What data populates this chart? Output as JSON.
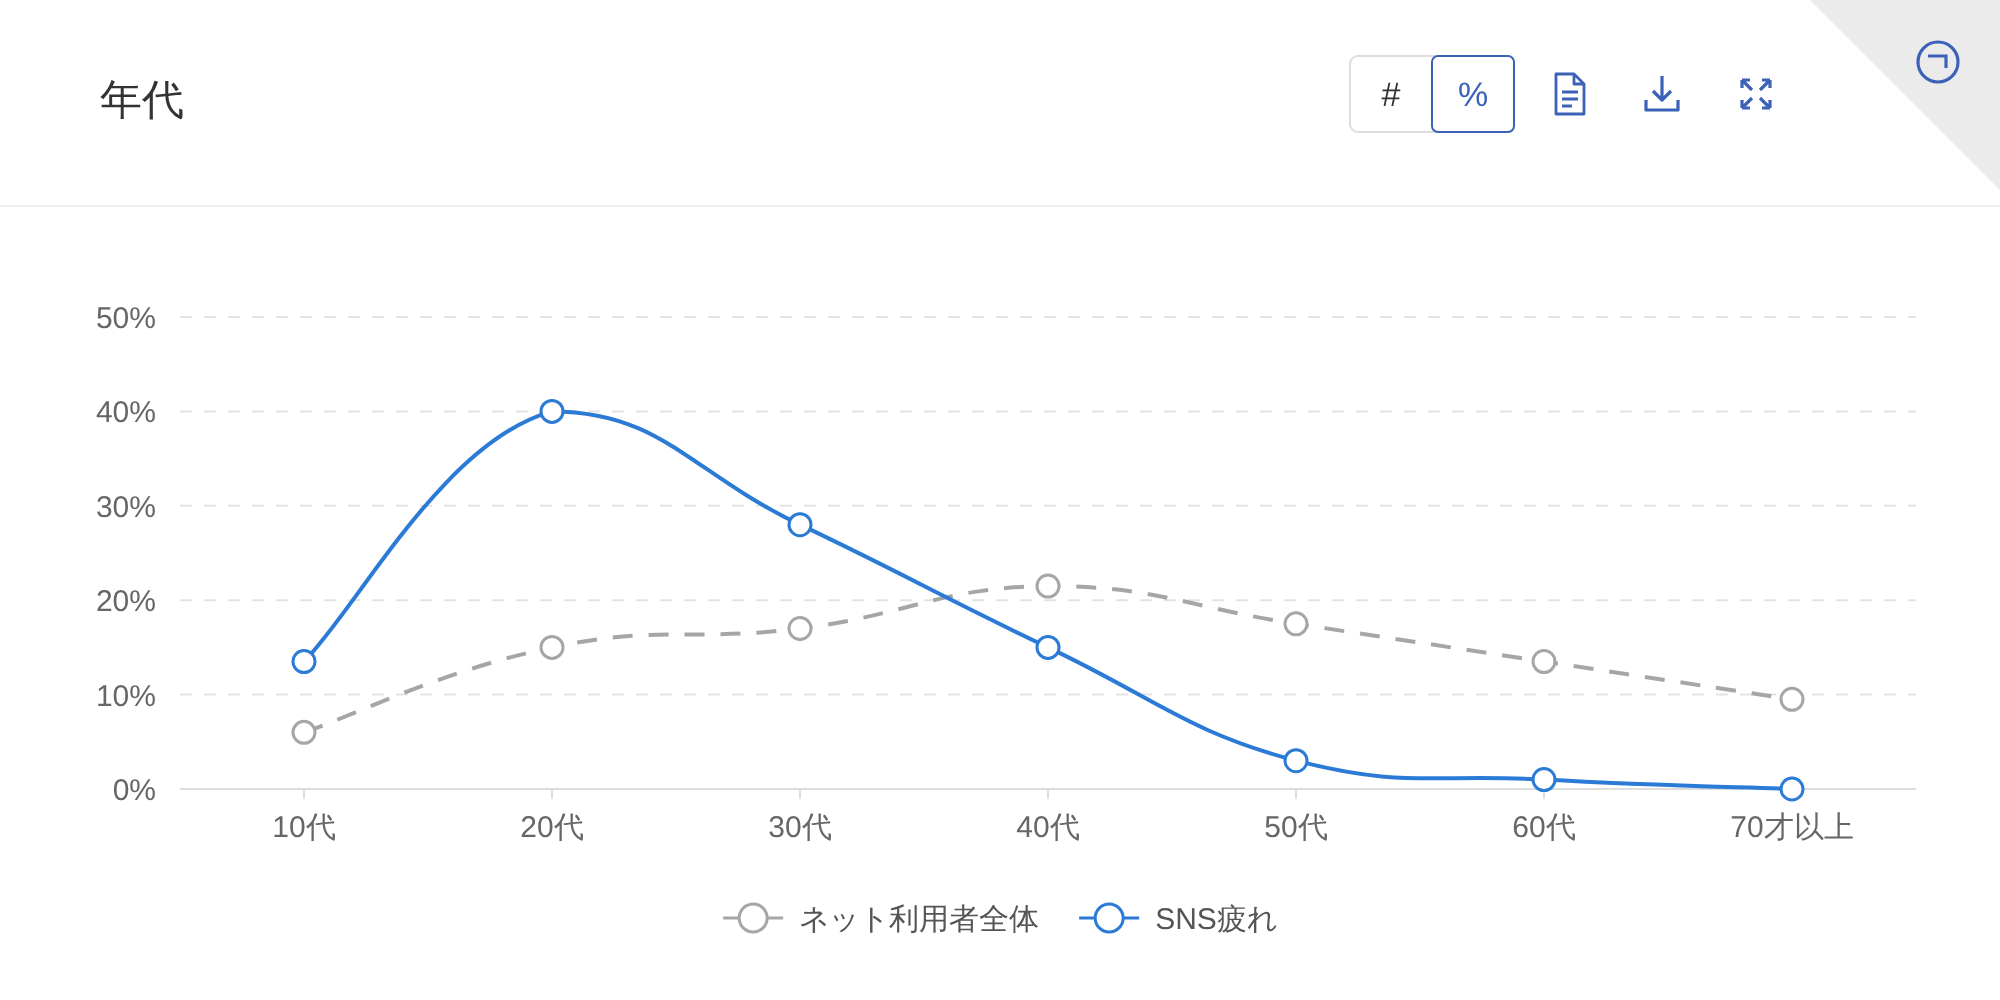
{
  "chart_data": {
    "type": "line",
    "title": "年代",
    "annotations": [
      "#",
      "%"
    ],
    "categories": [
      "10代",
      "20代",
      "30代",
      "40代",
      "50代",
      "60代",
      "70才以上"
    ],
    "series": [
      {
        "name": "ネット利用者全体",
        "color": "#a6a6a6",
        "line_style": "dashed",
        "values": [
          6,
          15,
          17,
          21.5,
          17.5,
          13.5,
          9.5
        ]
      },
      {
        "name": "SNS疲れ",
        "color": "#2b7bd6",
        "line_style": "solid",
        "values": [
          13.5,
          40,
          28,
          15,
          3,
          1,
          0
        ]
      }
    ],
    "ylim": [
      0,
      50
    ],
    "yticks": [
      {
        "value": 0,
        "label": "0%"
      },
      {
        "value": 10,
        "label": "10%"
      },
      {
        "value": 20,
        "label": "20%"
      },
      {
        "value": 30,
        "label": "30%"
      },
      {
        "value": 40,
        "label": "40%"
      },
      {
        "value": 50,
        "label": "50%"
      }
    ],
    "grid": "y",
    "legend": "bottom",
    "marker": "circle"
  }
}
